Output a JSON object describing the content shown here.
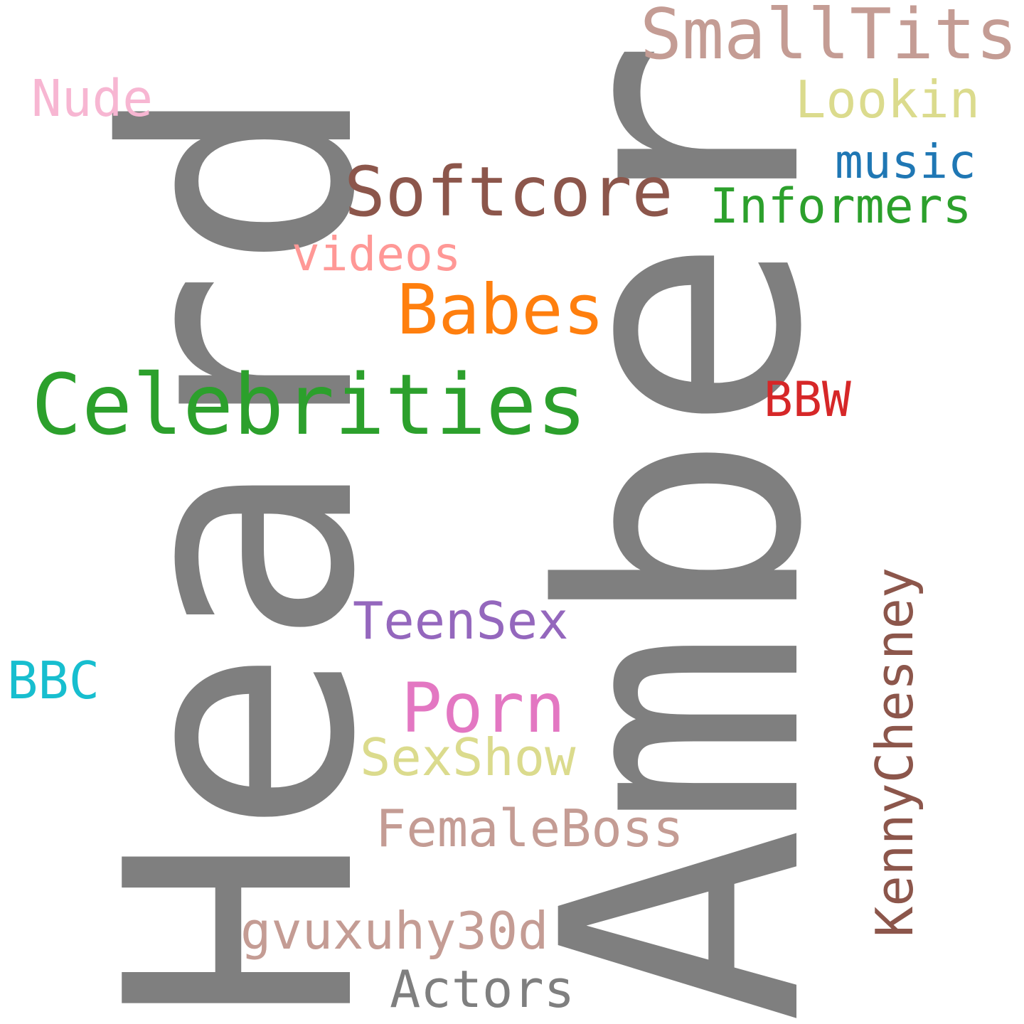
{
  "words": {
    "heard": {
      "text": "Heard",
      "color": "#7f7f7f"
    },
    "amber": {
      "text": "Amber",
      "color": "#7f7f7f"
    },
    "smalltits": {
      "text": "SmallTits",
      "color": "#c49c94"
    },
    "nude": {
      "text": "Nude",
      "color": "#f7b6d2"
    },
    "lookin": {
      "text": "Lookin",
      "color": "#dbdb8d"
    },
    "music": {
      "text": "music",
      "color": "#1f77b4"
    },
    "softcore": {
      "text": "Softcore",
      "color": "#8c564b"
    },
    "informers": {
      "text": "Informers",
      "color": "#2ca02c"
    },
    "videos": {
      "text": "videos",
      "color": "#ff9896"
    },
    "babes": {
      "text": "Babes",
      "color": "#ff7f0e"
    },
    "celebrities": {
      "text": "Celebrities",
      "color": "#2ca02c"
    },
    "bbw": {
      "text": "BBW",
      "color": "#d62728"
    },
    "teensex": {
      "text": "TeenSex",
      "color": "#9467bd"
    },
    "bbc": {
      "text": "BBC",
      "color": "#17becf"
    },
    "porn": {
      "text": "Porn",
      "color": "#e377c2"
    },
    "sexshow": {
      "text": "SexShow",
      "color": "#dbdb8d"
    },
    "femaleboss": {
      "text": "FemaleBoss",
      "color": "#c49c94"
    },
    "kennychesney": {
      "text": "KennyChesney",
      "color": "#8c564b"
    },
    "gvuxuhy": {
      "text": "gvuxuhy30d",
      "color": "#c49c94"
    },
    "actors": {
      "text": "Actors",
      "color": "#7f7f7f"
    }
  }
}
